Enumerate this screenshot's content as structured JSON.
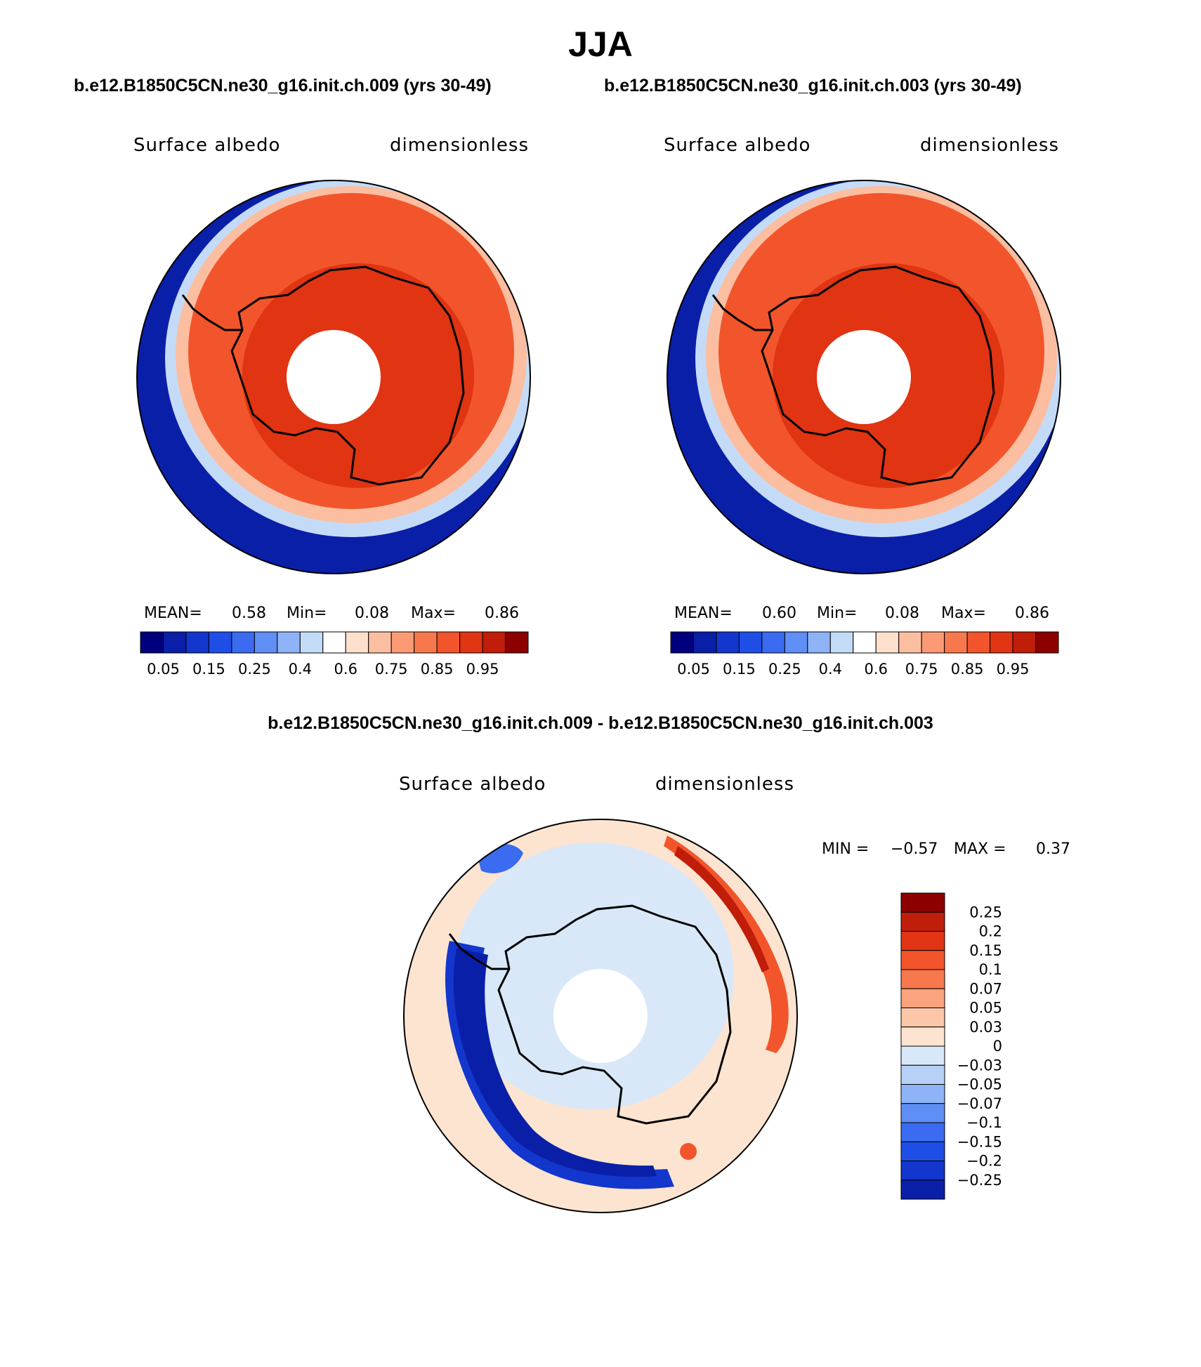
{
  "title": "JJA",
  "run_a": "b.e12.B1850C5CN.ne30_g16.init.ch.009 (yrs 30-49)",
  "run_b": "b.e12.B1850C5CN.ne30_g16.init.ch.003 (yrs 30-49)",
  "diff_title": "b.e12.B1850C5CN.ne30_g16.init.ch.009 - b.e12.B1850C5CN.ne30_g16.init.ch.003",
  "colors": {
    "abs_scale": [
      "#00007f",
      "#0a1fa8",
      "#1336cc",
      "#1f4ee6",
      "#3a6bf0",
      "#5f8ef5",
      "#8fb3f7",
      "#c4dbf7",
      "#ffffff",
      "#fde0cc",
      "#fcbea0",
      "#fb9a74",
      "#f7784d",
      "#f2552b",
      "#e03413",
      "#c01d0a",
      "#8c0000"
    ],
    "diff_scale": [
      "#0a1fa8",
      "#1336cc",
      "#1f4ee6",
      "#3a6bf0",
      "#5f8ef5",
      "#8fb3f7",
      "#b7d1f6",
      "#d8e8f8",
      "#fde4d0",
      "#fcc6a8",
      "#fba27e",
      "#f7784d",
      "#f2552b",
      "#e03413",
      "#c01d0a",
      "#8c0000"
    ]
  },
  "chart_data": [
    {
      "type": "heatmap",
      "projection": "south-polar-stereographic",
      "left_label": "Surface albedo",
      "right_label": "dimensionless",
      "stats": {
        "mean_label": "MEAN=",
        "mean": "0.58",
        "min_label": "Min=",
        "min": "0.08",
        "max_label": "Max=",
        "max": "0.86"
      },
      "colorbar": {
        "orientation": "horizontal",
        "levels": [
          0.05,
          0.1,
          0.15,
          0.2,
          0.25,
          0.3,
          0.4,
          0.5,
          0.6,
          0.7,
          0.75,
          0.8,
          0.85,
          0.9,
          0.95
        ],
        "tick_labels": [
          "0.05",
          "0.15",
          "0.25",
          "0.4",
          "0.6",
          "0.75",
          "0.85",
          "0.95"
        ]
      }
    },
    {
      "type": "heatmap",
      "projection": "south-polar-stereographic",
      "left_label": "Surface albedo",
      "right_label": "dimensionless",
      "stats": {
        "mean_label": "MEAN=",
        "mean": "0.60",
        "min_label": "Min=",
        "min": "0.08",
        "max_label": "Max=",
        "max": "0.86"
      },
      "colorbar": {
        "orientation": "horizontal",
        "levels": [
          0.05,
          0.1,
          0.15,
          0.2,
          0.25,
          0.3,
          0.4,
          0.5,
          0.6,
          0.7,
          0.75,
          0.8,
          0.85,
          0.9,
          0.95
        ],
        "tick_labels": [
          "0.05",
          "0.15",
          "0.25",
          "0.4",
          "0.6",
          "0.75",
          "0.85",
          "0.95"
        ]
      }
    },
    {
      "type": "heatmap",
      "projection": "south-polar-stereographic",
      "left_label": "Surface albedo",
      "right_label": "dimensionless",
      "stats": {
        "min_label": "MIN =",
        "min": "−0.57",
        "max_label": "MAX =",
        "max": "0.37"
      },
      "colorbar": {
        "orientation": "vertical",
        "levels": [
          0.25,
          0.2,
          0.15,
          0.1,
          0.07,
          0.05,
          0.03,
          0,
          -0.03,
          -0.05,
          -0.07,
          -0.1,
          -0.15,
          -0.2,
          -0.25
        ],
        "tick_labels": [
          "0.25",
          "0.2",
          "0.15",
          "0.1",
          "0.07",
          "0.05",
          "0.03",
          "0",
          "−0.03",
          "−0.05",
          "−0.07",
          "−0.1",
          "−0.15",
          "−0.2",
          "−0.25"
        ]
      }
    }
  ]
}
